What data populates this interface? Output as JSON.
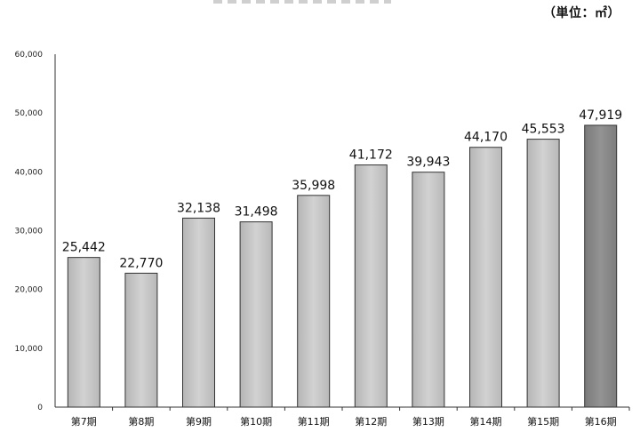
{
  "unit": "（単位：㎡）",
  "chart_data": {
    "type": "bar",
    "title": "",
    "xlabel": "",
    "ylabel": "",
    "ylim": [
      0,
      60000
    ],
    "yticks": [
      0,
      10000,
      20000,
      30000,
      40000,
      50000,
      60000
    ],
    "ytick_labels": [
      "0",
      "10,000",
      "20,000",
      "30,000",
      "40,000",
      "50,000",
      "60,000"
    ],
    "categories": [
      "第7期",
      "第8期",
      "第9期",
      "第10期",
      "第11期",
      "第12期",
      "第13期",
      "第14期",
      "第15期",
      "第16期"
    ],
    "values": [
      25442,
      22770,
      32138,
      31498,
      35998,
      41172,
      39943,
      44170,
      45553,
      47919
    ],
    "value_labels": [
      "25,442",
      "22,770",
      "32,138",
      "31,498",
      "35,998",
      "41,172",
      "39,943",
      "44,170",
      "45,553",
      "47,919"
    ],
    "grid": false,
    "legend": "none",
    "colors": {
      "bar": "#c4c4c4",
      "bar_highlight": "#858585",
      "axis": "#333333"
    }
  }
}
